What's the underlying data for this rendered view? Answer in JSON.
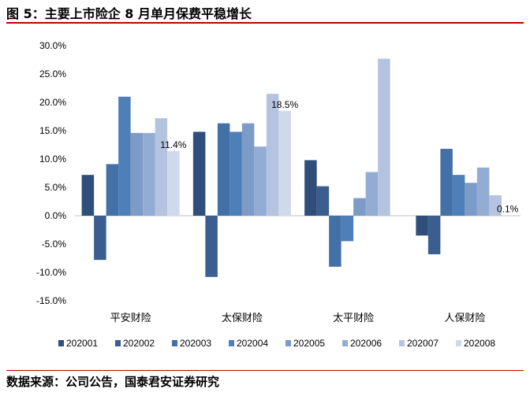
{
  "title": "图 5：主要上市险企 8 月单月保费平稳增长",
  "source": "数据来源：公司公告，国泰君安证券研究",
  "chart_data": {
    "type": "bar",
    "title": "图 5：主要上市险企 8 月单月保费平稳增长",
    "xlabel": "",
    "ylabel": "",
    "ylim": [
      -0.15,
      0.3
    ],
    "ytick_values": [
      -0.15,
      -0.1,
      -0.05,
      0.0,
      0.05,
      0.1,
      0.15,
      0.2,
      0.25,
      0.3
    ],
    "ytick_labels": [
      "-15.0%",
      "-10.0%",
      "-5.0%",
      "0.0%",
      "5.0%",
      "10.0%",
      "15.0%",
      "20.0%",
      "25.0%",
      "30.0%"
    ],
    "categories": [
      "平安财险",
      "太保财险",
      "太平财险",
      "人保财险"
    ],
    "legend_position": "bottom",
    "grid": false,
    "series": [
      {
        "name": "202001",
        "color": "#2f4f7a",
        "values": [
          0.072,
          0.148,
          0.098,
          -0.035
        ]
      },
      {
        "name": "202002",
        "color": "#3a5e8f",
        "values": [
          -0.078,
          -0.108,
          0.052,
          -0.068
        ]
      },
      {
        "name": "202003",
        "color": "#4470a8",
        "values": [
          0.091,
          0.163,
          -0.09,
          0.118
        ]
      },
      {
        "name": "202004",
        "color": "#4f7fb8",
        "values": [
          0.21,
          0.148,
          -0.045,
          0.072
        ]
      },
      {
        "name": "202005",
        "color": "#7d9bc7",
        "values": [
          0.146,
          0.163,
          0.031,
          0.058
        ]
      },
      {
        "name": "202006",
        "color": "#93acd3",
        "values": [
          0.146,
          0.122,
          0.077,
          0.085
        ]
      },
      {
        "name": "202007",
        "color": "#b4c4e0",
        "values": [
          0.172,
          0.215,
          0.277,
          0.036
        ]
      },
      {
        "name": "202008",
        "color": "#d0d9ec",
        "values": [
          0.114,
          0.185,
          null,
          0.001
        ]
      }
    ],
    "annotations": [
      {
        "category": "平安财险",
        "series": "202008",
        "text": "11.4%"
      },
      {
        "category": "太保财险",
        "series": "202008",
        "text": "18.5%"
      },
      {
        "category": "人保财险",
        "series": "202008",
        "text": "0.1%"
      }
    ]
  }
}
